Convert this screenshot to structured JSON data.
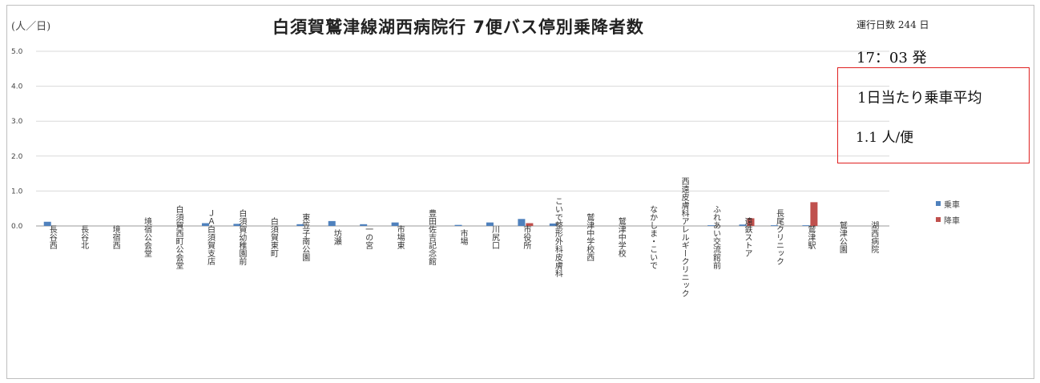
{
  "header": {
    "unit_label": "(人／日)",
    "title": "白須賀鷲津線湖西病院行 7便バス停別乗降者数",
    "operating_days": "運行日数 244 日",
    "departure": "17：03 発",
    "average_label": "1日当たり乗車平均",
    "average_value": "1.1 人/便"
  },
  "colors": {
    "boarding": "#4f81bd",
    "alighting": "#c0504d",
    "highlight_box": "#e02020"
  },
  "chart_data": {
    "type": "bar",
    "title": "白須賀鷲津線湖西病院行 7便バス停別乗降者数",
    "ylabel": "(人／日)",
    "ylim": [
      0,
      5
    ],
    "yticks": [
      "0.0",
      "1.0",
      "2.0",
      "3.0",
      "4.0",
      "5.0"
    ],
    "grid": true,
    "legend_position": "right",
    "categories": [
      "長谷西",
      "長谷北",
      "境宿西",
      "境宿公会堂",
      "白須賀西町公会堂",
      "ＪＡ白須賀支店",
      "白須賀幼稚園前",
      "白須賀東町",
      "東笠子南公園",
      "坊瀬",
      "一の宮",
      "市場東",
      "豊田佐吉記念館",
      "市場",
      "川尻口",
      "市役所",
      "こいで整形外科皮膚科",
      "鷲津中学校西",
      "鷲津中学校",
      "なかしま・こいで",
      "西遠皮膚科アレルギークリニック",
      "ふれあい交流館前",
      "遠鉄ストア",
      "長尾クリニック",
      "鷲津駅",
      "鷲津公園",
      "湖西病院"
    ],
    "series": [
      {
        "name": "乗車",
        "values": [
          0.12,
          0,
          0,
          0,
          0,
          0.08,
          0.06,
          0,
          0.05,
          0.14,
          0.05,
          0.1,
          0,
          0.03,
          0.1,
          0.2,
          0.07,
          0,
          0,
          0,
          0,
          0.02,
          0.04,
          0.02,
          0.02,
          0,
          0
        ]
      },
      {
        "name": "降車",
        "values": [
          0,
          0,
          0,
          0,
          0,
          0,
          0,
          0,
          0,
          0,
          0,
          0,
          0,
          0,
          0,
          0.08,
          0,
          0,
          0,
          0,
          0,
          0,
          0.22,
          0,
          0.68,
          0,
          0
        ]
      }
    ]
  }
}
